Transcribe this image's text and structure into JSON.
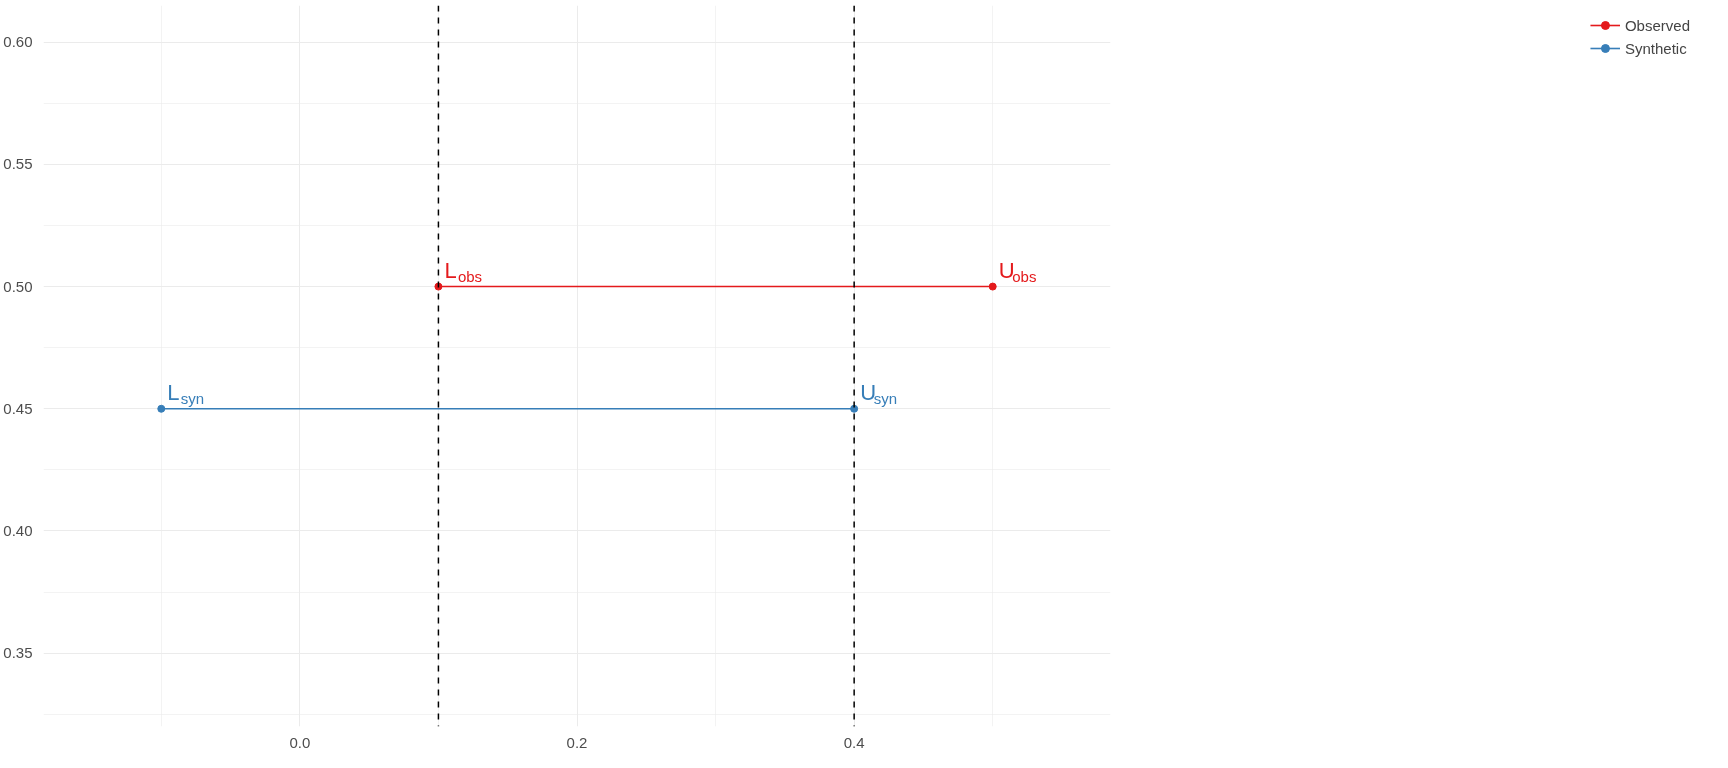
{
  "chart_data": {
    "type": "line",
    "marker": "circle",
    "legend": "right",
    "grid": true,
    "xlim": [
      -0.185,
      0.585
    ],
    "ylim": [
      0.32,
      0.615
    ],
    "xticks": [
      {
        "value": 0,
        "label": "0.0"
      },
      {
        "value": 0.2,
        "label": "0.2"
      },
      {
        "value": 0.4,
        "label": "0.4"
      }
    ],
    "yticks": [
      0.35,
      {
        "value": 0.4,
        "label": "0.40"
      },
      0.45,
      {
        "value": 0.5,
        "label": "0.50"
      },
      0.55,
      {
        "value": 0.6,
        "label": "0.60"
      }
    ],
    "series": [
      {
        "name": "Observed",
        "color": "#e41a1c",
        "x": [
          0.1,
          0.5
        ],
        "values": [
          0.5,
          0.5
        ]
      },
      {
        "name": "Synthetic",
        "color": "#377eb8",
        "x": [
          -0.1,
          0.4
        ],
        "values": [
          0.45,
          0.45
        ]
      }
    ],
    "ref_lines": [
      {
        "axis": "x",
        "value": 0.1,
        "color": "#000000",
        "line_style": "dashed"
      },
      {
        "axis": "x",
        "value": 0.4,
        "color": "#000000",
        "line_style": "dashed"
      }
    ],
    "annotations": [
      {
        "text": "L$_{obs}$",
        "x": 0.1,
        "y": 0.5
      },
      {
        "text": "U$_{obs}$",
        "x": 0.5,
        "y": 0.5
      },
      {
        "text": "L$_{syn}$",
        "x": -0.1,
        "y": 0.45
      },
      {
        "text": "U$_{syn}$",
        "x": 0.4,
        "y": 0.45
      }
    ]
  }
}
